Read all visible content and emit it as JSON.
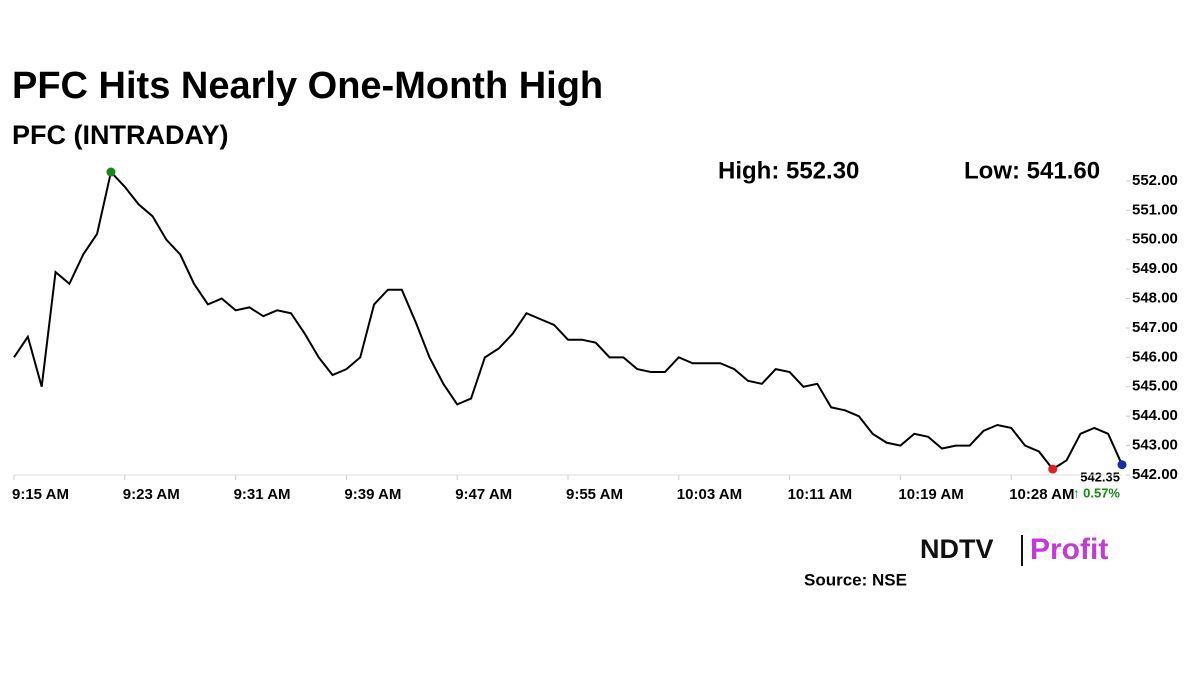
{
  "chart_data": {
    "type": "line",
    "title": "PFC Hits Nearly One-Month High",
    "subtitle": "PFC (INTRADAY)",
    "high_label": "High: 552.30",
    "low_label": "Low: 541.60",
    "last_label": "542.35",
    "change_label": "↑ 0.57%",
    "source": "Source: NSE",
    "logo": {
      "left": "NDTV",
      "right": "Profit"
    },
    "categories": [
      "9:15 AM",
      null,
      null,
      null,
      null,
      null,
      null,
      null,
      "9:23 AM",
      null,
      null,
      null,
      null,
      null,
      null,
      null,
      "9:31 AM",
      null,
      null,
      null,
      null,
      null,
      null,
      null,
      "9:39 AM",
      null,
      null,
      null,
      null,
      null,
      null,
      null,
      "9:47 AM",
      null,
      null,
      null,
      null,
      null,
      null,
      null,
      "9:55 AM",
      null,
      null,
      null,
      null,
      null,
      null,
      null,
      "10:03 AM",
      null,
      null,
      null,
      null,
      null,
      null,
      null,
      "10:11 AM",
      null,
      null,
      null,
      null,
      null,
      null,
      null,
      "10:19 AM",
      null,
      null,
      null,
      null,
      null,
      null,
      null,
      "10:28 AM",
      null,
      null,
      null,
      null,
      null,
      null,
      null,
      null
    ],
    "series": [
      {
        "name": "PFC",
        "color": "#000000",
        "values": [
          546.0,
          546.7,
          545.0,
          548.9,
          548.5,
          549.5,
          550.2,
          552.3,
          551.8,
          551.2,
          550.8,
          550.0,
          549.5,
          548.5,
          547.8,
          548.0,
          547.6,
          547.7,
          547.4,
          547.6,
          547.5,
          546.8,
          546.0,
          545.4,
          545.6,
          546.0,
          547.8,
          548.3,
          548.3,
          547.2,
          546.0,
          545.1,
          544.4,
          544.6,
          546.0,
          546.3,
          546.8,
          547.5,
          547.3,
          547.1,
          546.6,
          546.6,
          546.5,
          546.0,
          546.0,
          545.6,
          545.5,
          545.5,
          546.0,
          545.8,
          545.8,
          545.8,
          545.6,
          545.2,
          545.1,
          545.6,
          545.5,
          545.0,
          545.1,
          544.3,
          544.2,
          544.0,
          543.4,
          543.1,
          543.0,
          543.4,
          543.3,
          542.9,
          543.0,
          543.0,
          543.5,
          543.7,
          543.6,
          543.0,
          542.8,
          542.2,
          542.5,
          543.4,
          543.6,
          543.4,
          542.35
        ]
      }
    ],
    "markers": [
      {
        "index": 7,
        "color": "#138a13"
      },
      {
        "index": 75,
        "color": "#e02020"
      },
      {
        "index": 80,
        "color": "#1a2aa8"
      }
    ],
    "ylim": [
      542,
      552.2
    ],
    "yticks": [
      {
        "value": 542,
        "label": "542.00"
      },
      {
        "value": 543,
        "label": "543.00"
      },
      {
        "value": 544,
        "label": "544.00"
      },
      {
        "value": 545,
        "label": "545.00"
      },
      {
        "value": 546,
        "label": "546.00"
      },
      {
        "value": 547,
        "label": "547.00"
      },
      {
        "value": 548,
        "label": "548.00"
      },
      {
        "value": 549,
        "label": "549.00"
      },
      {
        "value": 550,
        "label": "550.00"
      },
      {
        "value": 551,
        "label": "551.00"
      },
      {
        "value": 552,
        "label": "552.00"
      }
    ]
  }
}
